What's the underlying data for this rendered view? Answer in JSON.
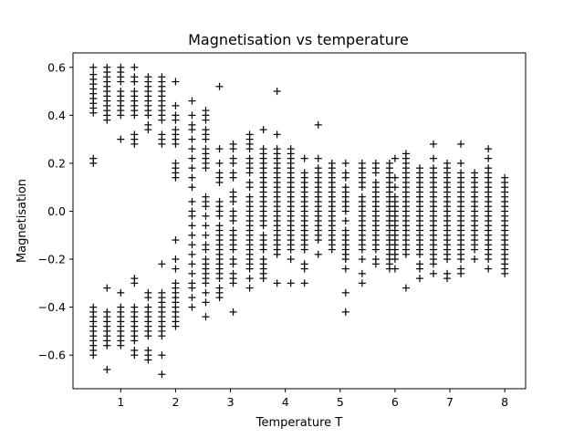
{
  "chart_data": {
    "type": "scatter",
    "title": "Magnetisation vs temperature",
    "xlabel": "Temperature T",
    "ylabel": "Magnetisation",
    "xlim": [
      0.13,
      8.38
    ],
    "ylim": [
      -0.74,
      0.66
    ],
    "xticks": [
      1,
      2,
      3,
      4,
      5,
      6,
      7,
      8
    ],
    "xtick_labels": [
      "1",
      "2",
      "3",
      "4",
      "5",
      "6",
      "7",
      "8"
    ],
    "yticks": [
      -0.6,
      -0.4,
      -0.2,
      0.0,
      0.2,
      0.4,
      0.6
    ],
    "ytick_labels": [
      "−0.6",
      "−0.4",
      "−0.2",
      "0.0",
      "0.2",
      "0.4",
      "0.6"
    ],
    "grid": false,
    "marker": "+",
    "marker_color": "#000000",
    "series": [
      {
        "x": 0.5,
        "y": [
          0.6,
          0.57,
          0.55,
          0.53,
          0.51,
          0.49,
          0.47,
          0.45,
          0.43,
          0.41,
          0.22,
          0.2,
          -0.4,
          -0.42,
          -0.44,
          -0.46,
          -0.48,
          -0.5,
          -0.52,
          -0.54,
          -0.56,
          -0.58,
          -0.6
        ]
      },
      {
        "x": 0.75,
        "y": [
          0.6,
          0.58,
          0.56,
          0.54,
          0.52,
          0.5,
          0.48,
          0.46,
          0.44,
          0.42,
          0.4,
          0.38,
          -0.32,
          -0.42,
          -0.44,
          -0.46,
          -0.48,
          -0.5,
          -0.52,
          -0.54,
          -0.56,
          -0.66
        ]
      },
      {
        "x": 1.0,
        "y": [
          0.6,
          0.58,
          0.56,
          0.54,
          0.5,
          0.48,
          0.46,
          0.44,
          0.42,
          0.4,
          0.3,
          -0.34,
          -0.4,
          -0.42,
          -0.44,
          -0.46,
          -0.48,
          -0.5,
          -0.52,
          -0.54,
          -0.56
        ]
      },
      {
        "x": 1.25,
        "y": [
          0.6,
          0.56,
          0.54,
          0.5,
          0.48,
          0.46,
          0.44,
          0.42,
          0.4,
          0.32,
          0.3,
          0.28,
          -0.28,
          -0.3,
          -0.4,
          -0.42,
          -0.44,
          -0.46,
          -0.48,
          -0.5,
          -0.52,
          -0.54,
          -0.58,
          -0.6
        ]
      },
      {
        "x": 1.5,
        "y": [
          0.56,
          0.54,
          0.52,
          0.5,
          0.48,
          0.46,
          0.44,
          0.42,
          0.4,
          0.36,
          0.34,
          -0.34,
          -0.36,
          -0.4,
          -0.42,
          -0.44,
          -0.46,
          -0.48,
          -0.5,
          -0.52,
          -0.58,
          -0.6,
          -0.62
        ]
      },
      {
        "x": 1.75,
        "y": [
          0.56,
          0.54,
          0.52,
          0.5,
          0.48,
          0.46,
          0.44,
          0.42,
          0.4,
          0.38,
          0.32,
          0.3,
          0.28,
          -0.22,
          -0.34,
          -0.36,
          -0.38,
          -0.4,
          -0.42,
          -0.44,
          -0.46,
          -0.48,
          -0.5,
          -0.52,
          -0.6,
          -0.68
        ]
      },
      {
        "x": 2.0,
        "y": [
          0.54,
          0.44,
          0.4,
          0.38,
          0.34,
          0.32,
          0.3,
          0.28,
          0.2,
          0.18,
          0.16,
          0.14,
          -0.12,
          -0.2,
          -0.24,
          -0.3,
          -0.32,
          -0.34,
          -0.36,
          -0.38,
          -0.4,
          -0.42,
          -0.44,
          -0.46,
          -0.48
        ]
      },
      {
        "x": 2.3,
        "y": [
          0.46,
          0.4,
          0.36,
          0.34,
          0.3,
          0.26,
          0.22,
          0.18,
          0.14,
          0.1,
          0.04,
          0.0,
          -0.02,
          -0.06,
          -0.1,
          -0.14,
          -0.18,
          -0.22,
          -0.26,
          -0.3,
          -0.32,
          -0.36,
          -0.4
        ]
      },
      {
        "x": 2.55,
        "y": [
          0.42,
          0.4,
          0.38,
          0.34,
          0.32,
          0.3,
          0.26,
          0.24,
          0.22,
          0.2,
          0.18,
          0.06,
          0.04,
          0.02,
          -0.02,
          -0.06,
          -0.1,
          -0.14,
          -0.16,
          -0.2,
          -0.22,
          -0.24,
          -0.26,
          -0.28,
          -0.3,
          -0.34,
          -0.38,
          -0.44
        ]
      },
      {
        "x": 2.8,
        "y": [
          0.52,
          0.26,
          0.2,
          0.16,
          0.14,
          0.12,
          0.04,
          0.02,
          0.0,
          -0.02,
          -0.06,
          -0.08,
          -0.1,
          -0.12,
          -0.14,
          -0.16,
          -0.18,
          -0.2,
          -0.22,
          -0.24,
          -0.26,
          -0.28,
          -0.32,
          -0.34,
          -0.36
        ]
      },
      {
        "x": 3.05,
        "y": [
          0.28,
          0.26,
          0.22,
          0.2,
          0.16,
          0.14,
          0.08,
          0.06,
          0.04,
          0.0,
          -0.02,
          -0.04,
          -0.08,
          -0.1,
          -0.12,
          -0.14,
          -0.16,
          -0.2,
          -0.22,
          -0.26,
          -0.28,
          -0.3,
          -0.42
        ]
      },
      {
        "x": 3.35,
        "y": [
          0.32,
          0.3,
          0.28,
          0.26,
          0.22,
          0.2,
          0.18,
          0.16,
          0.12,
          0.1,
          0.06,
          0.04,
          0.02,
          0.0,
          -0.02,
          -0.04,
          -0.06,
          -0.08,
          -0.1,
          -0.12,
          -0.14,
          -0.16,
          -0.18,
          -0.2,
          -0.22,
          -0.24,
          -0.28,
          -0.32
        ]
      },
      {
        "x": 3.6,
        "y": [
          0.34,
          0.26,
          0.24,
          0.22,
          0.2,
          0.18,
          0.16,
          0.14,
          0.12,
          0.1,
          0.08,
          0.06,
          0.04,
          0.02,
          0.0,
          -0.02,
          -0.04,
          -0.06,
          -0.1,
          -0.12,
          -0.14,
          -0.16,
          -0.2,
          -0.22,
          -0.24,
          -0.26,
          -0.28
        ]
      },
      {
        "x": 3.85,
        "y": [
          0.5,
          0.32,
          0.26,
          0.24,
          0.22,
          0.2,
          0.18,
          0.16,
          0.14,
          0.12,
          0.1,
          0.08,
          0.06,
          0.04,
          0.02,
          0.0,
          -0.02,
          -0.04,
          -0.06,
          -0.08,
          -0.1,
          -0.12,
          -0.14,
          -0.16,
          -0.18,
          -0.3
        ]
      },
      {
        "x": 4.1,
        "y": [
          0.26,
          0.24,
          0.22,
          0.2,
          0.18,
          0.16,
          0.14,
          0.12,
          0.1,
          0.08,
          0.06,
          0.04,
          0.02,
          0.0,
          -0.02,
          -0.04,
          -0.06,
          -0.08,
          -0.1,
          -0.12,
          -0.14,
          -0.16,
          -0.2,
          -0.3
        ]
      },
      {
        "x": 4.35,
        "y": [
          0.22,
          0.16,
          0.14,
          0.12,
          0.1,
          0.08,
          0.06,
          0.04,
          0.02,
          0.0,
          -0.02,
          -0.04,
          -0.06,
          -0.08,
          -0.1,
          -0.12,
          -0.14,
          -0.16,
          -0.22,
          -0.24,
          -0.3
        ]
      },
      {
        "x": 4.6,
        "y": [
          0.36,
          0.22,
          0.18,
          0.16,
          0.14,
          0.12,
          0.1,
          0.08,
          0.06,
          0.04,
          0.02,
          0.0,
          -0.02,
          -0.04,
          -0.06,
          -0.08,
          -0.1,
          -0.12,
          -0.18
        ]
      },
      {
        "x": 4.85,
        "y": [
          0.2,
          0.18,
          0.16,
          0.14,
          0.12,
          0.1,
          0.08,
          0.06,
          0.04,
          0.02,
          0.0,
          -0.02,
          -0.04,
          -0.06,
          -0.08,
          -0.1,
          -0.12,
          -0.14,
          -0.16
        ]
      },
      {
        "x": 5.1,
        "y": [
          0.2,
          0.16,
          0.14,
          0.1,
          0.08,
          0.06,
          0.04,
          0.02,
          0.0,
          -0.04,
          -0.08,
          -0.1,
          -0.12,
          -0.14,
          -0.16,
          -0.18,
          -0.2,
          -0.24,
          -0.34,
          -0.42
        ]
      },
      {
        "x": 5.4,
        "y": [
          0.2,
          0.18,
          0.16,
          0.14,
          0.12,
          0.1,
          0.06,
          0.04,
          0.02,
          0.0,
          -0.02,
          -0.04,
          -0.06,
          -0.08,
          -0.1,
          -0.12,
          -0.14,
          -0.16,
          -0.2,
          -0.26,
          -0.3
        ]
      },
      {
        "x": 5.65,
        "y": [
          0.2,
          0.18,
          0.16,
          0.12,
          0.1,
          0.08,
          0.06,
          0.04,
          0.02,
          0.0,
          -0.02,
          -0.04,
          -0.06,
          -0.08,
          -0.1,
          -0.12,
          -0.14,
          -0.16,
          -0.2,
          -0.22
        ]
      },
      {
        "x": 5.9,
        "y": [
          0.2,
          0.18,
          0.16,
          0.14,
          0.12,
          0.1,
          0.08,
          0.06,
          0.04,
          0.02,
          0.0,
          -0.02,
          -0.04,
          -0.06,
          -0.08,
          -0.1,
          -0.12,
          -0.14,
          -0.16,
          -0.18,
          -0.2,
          -0.22,
          -0.24
        ]
      },
      {
        "x": 6.0,
        "y": [
          0.22,
          0.14,
          0.1,
          0.06,
          0.04,
          0.02,
          0.0,
          -0.02,
          -0.04,
          -0.06,
          -0.08,
          -0.1,
          -0.12,
          -0.14,
          -0.16,
          -0.18,
          -0.2,
          -0.24
        ]
      },
      {
        "x": 6.2,
        "y": [
          0.24,
          0.22,
          0.2,
          0.18,
          0.16,
          0.14,
          0.12,
          0.1,
          0.08,
          0.06,
          0.04,
          0.02,
          0.0,
          -0.02,
          -0.04,
          -0.06,
          -0.08,
          -0.1,
          -0.12,
          -0.14,
          -0.16,
          -0.18,
          -0.32
        ]
      },
      {
        "x": 6.45,
        "y": [
          0.18,
          0.16,
          0.14,
          0.12,
          0.1,
          0.08,
          0.06,
          0.04,
          0.02,
          0.0,
          -0.02,
          -0.04,
          -0.06,
          -0.08,
          -0.1,
          -0.12,
          -0.14,
          -0.16,
          -0.18,
          -0.22,
          -0.24,
          -0.28
        ]
      },
      {
        "x": 6.7,
        "y": [
          0.28,
          0.22,
          0.18,
          0.16,
          0.14,
          0.12,
          0.1,
          0.08,
          0.06,
          0.04,
          0.02,
          0.0,
          -0.02,
          -0.04,
          -0.06,
          -0.08,
          -0.1,
          -0.12,
          -0.14,
          -0.16,
          -0.18,
          -0.2,
          -0.22,
          -0.26
        ]
      },
      {
        "x": 6.95,
        "y": [
          0.2,
          0.18,
          0.16,
          0.14,
          0.12,
          0.1,
          0.08,
          0.06,
          0.04,
          0.02,
          0.0,
          -0.02,
          -0.04,
          -0.06,
          -0.08,
          -0.1,
          -0.12,
          -0.14,
          -0.16,
          -0.18,
          -0.2,
          -0.26,
          -0.28
        ]
      },
      {
        "x": 7.2,
        "y": [
          0.28,
          0.2,
          0.16,
          0.14,
          0.12,
          0.1,
          0.08,
          0.06,
          0.04,
          0.02,
          0.0,
          -0.02,
          -0.04,
          -0.06,
          -0.08,
          -0.1,
          -0.12,
          -0.14,
          -0.16,
          -0.18,
          -0.2,
          -0.24,
          -0.26
        ]
      },
      {
        "x": 7.45,
        "y": [
          0.16,
          0.14,
          0.12,
          0.1,
          0.08,
          0.06,
          0.04,
          0.02,
          0.0,
          -0.02,
          -0.04,
          -0.06,
          -0.08,
          -0.1,
          -0.12,
          -0.14,
          -0.16,
          -0.2
        ]
      },
      {
        "x": 7.7,
        "y": [
          0.26,
          0.22,
          0.18,
          0.16,
          0.14,
          0.12,
          0.1,
          0.08,
          0.06,
          0.04,
          0.02,
          0.0,
          -0.02,
          -0.04,
          -0.06,
          -0.08,
          -0.1,
          -0.12,
          -0.14,
          -0.16,
          -0.18,
          -0.2,
          -0.24
        ]
      },
      {
        "x": 8.0,
        "y": [
          0.14,
          0.12,
          0.1,
          0.08,
          0.06,
          0.04,
          0.02,
          0.0,
          -0.02,
          -0.04,
          -0.06,
          -0.08,
          -0.1,
          -0.12,
          -0.14,
          -0.16,
          -0.18,
          -0.2,
          -0.22,
          -0.24,
          -0.26
        ]
      }
    ]
  }
}
